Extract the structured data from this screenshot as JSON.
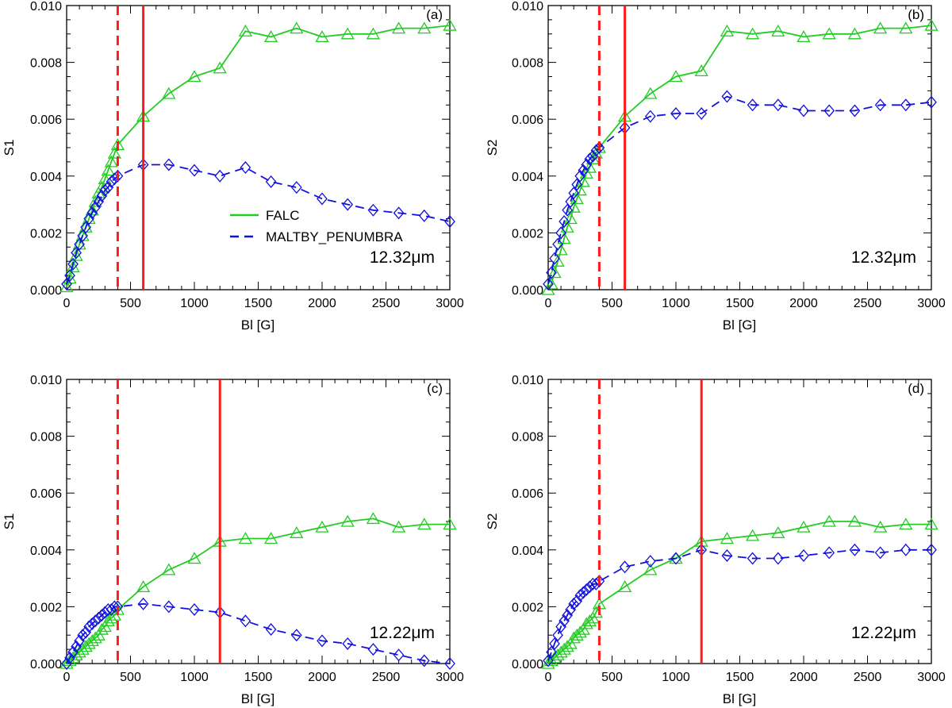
{
  "colors": {
    "falc": "#22cc22",
    "maltby": "#1010dd",
    "marker": "#ff1a1a",
    "axis": "#000000"
  },
  "legend": {
    "falc_label": "FALC",
    "maltby_label": "MALTBY_PENUMBRA"
  },
  "chart_data": [
    {
      "type": "line",
      "panel_label": "(a)",
      "wavelength_label": "12.32μm",
      "xlabel": "Bl [G]",
      "ylabel": "S1",
      "xlim": [
        0,
        3000
      ],
      "ylim": [
        0,
        0.01
      ],
      "xticks": [
        "0",
        "500",
        "1000",
        "1500",
        "2000",
        "2500",
        "3000"
      ],
      "yticks": [
        "0.000",
        "0.002",
        "0.004",
        "0.006",
        "0.008",
        "0.010"
      ],
      "show_legend": true,
      "vline_dashed": 400,
      "vline_solid": 600,
      "series": [
        {
          "name": "FALC",
          "marker": "triangle",
          "x": [
            0,
            25,
            50,
            75,
            100,
            125,
            150,
            175,
            200,
            225,
            250,
            275,
            300,
            325,
            350,
            375,
            400,
            600,
            800,
            1000,
            1200,
            1400,
            1600,
            1800,
            2000,
            2200,
            2400,
            2600,
            2800,
            3000
          ],
          "y": [
            0.0001,
            0.0004,
            0.0008,
            0.0012,
            0.0016,
            0.0019,
            0.0022,
            0.0025,
            0.0028,
            0.0031,
            0.0034,
            0.0036,
            0.0039,
            0.0042,
            0.0045,
            0.0048,
            0.0051,
            0.0061,
            0.0069,
            0.0075,
            0.0078,
            0.0091,
            0.0089,
            0.0092,
            0.0089,
            0.009,
            0.009,
            0.0092,
            0.0092,
            0.0093
          ]
        },
        {
          "name": "MALTBY_PENUMBRA",
          "marker": "diamond",
          "x": [
            0,
            25,
            50,
            75,
            100,
            125,
            150,
            175,
            200,
            225,
            250,
            275,
            300,
            325,
            350,
            375,
            400,
            600,
            800,
            1000,
            1200,
            1400,
            1600,
            1800,
            2000,
            2200,
            2400,
            2600,
            2800,
            3000
          ],
          "y": [
            0.0002,
            0.0005,
            0.0009,
            0.0013,
            0.0016,
            0.0019,
            0.0022,
            0.0025,
            0.0027,
            0.0029,
            0.0031,
            0.0033,
            0.0035,
            0.0036,
            0.0038,
            0.0039,
            0.004,
            0.0044,
            0.0044,
            0.0042,
            0.004,
            0.0043,
            0.0038,
            0.0036,
            0.0032,
            0.003,
            0.0028,
            0.0027,
            0.0026,
            0.0024
          ]
        }
      ]
    },
    {
      "type": "line",
      "panel_label": "(b)",
      "wavelength_label": "12.32μm",
      "xlabel": "Bl [G]",
      "ylabel": "S2",
      "xlim": [
        0,
        3000
      ],
      "ylim": [
        0,
        0.01
      ],
      "xticks": [
        "0",
        "500",
        "1000",
        "1500",
        "2000",
        "2500",
        "3000"
      ],
      "yticks": [
        "0.000",
        "0.002",
        "0.004",
        "0.006",
        "0.008",
        "0.010"
      ],
      "show_legend": false,
      "vline_dashed": 400,
      "vline_solid": 600,
      "series": [
        {
          "name": "FALC",
          "marker": "triangle",
          "x": [
            0,
            25,
            50,
            75,
            100,
            125,
            150,
            175,
            200,
            225,
            250,
            275,
            300,
            325,
            350,
            375,
            400,
            600,
            800,
            1000,
            1200,
            1400,
            1600,
            1800,
            2000,
            2200,
            2400,
            2600,
            2800,
            3000
          ],
          "y": [
            0.0,
            0.0002,
            0.0006,
            0.001,
            0.0014,
            0.0018,
            0.0022,
            0.0025,
            0.0029,
            0.0032,
            0.0035,
            0.0038,
            0.0041,
            0.0043,
            0.0046,
            0.0048,
            0.005,
            0.0061,
            0.0069,
            0.0075,
            0.0077,
            0.0091,
            0.009,
            0.0091,
            0.0089,
            0.009,
            0.009,
            0.0092,
            0.0092,
            0.0093
          ]
        },
        {
          "name": "MALTBY_PENUMBRA",
          "marker": "diamond",
          "x": [
            0,
            25,
            50,
            75,
            100,
            125,
            150,
            175,
            200,
            225,
            250,
            275,
            300,
            325,
            350,
            375,
            400,
            600,
            800,
            1000,
            1200,
            1400,
            1600,
            1800,
            2000,
            2200,
            2400,
            2600,
            2800,
            3000
          ],
          "y": [
            0.0002,
            0.0006,
            0.0011,
            0.0016,
            0.002,
            0.0024,
            0.0028,
            0.0031,
            0.0034,
            0.0037,
            0.004,
            0.0042,
            0.0044,
            0.0046,
            0.0047,
            0.0049,
            0.005,
            0.0057,
            0.0061,
            0.0062,
            0.0062,
            0.0068,
            0.0065,
            0.0065,
            0.0063,
            0.0063,
            0.0063,
            0.0065,
            0.0065,
            0.0066
          ]
        }
      ]
    },
    {
      "type": "line",
      "panel_label": "(c)",
      "wavelength_label": "12.22μm",
      "xlabel": "Bl [G]",
      "ylabel": "S1",
      "xlim": [
        0,
        3000
      ],
      "ylim": [
        0,
        0.01
      ],
      "xticks": [
        "0",
        "500",
        "1000",
        "1500",
        "2000",
        "2500",
        "3000"
      ],
      "yticks": [
        "0.000",
        "0.002",
        "0.004",
        "0.006",
        "0.008",
        "0.010"
      ],
      "show_legend": false,
      "vline_dashed": 400,
      "vline_solid": 1200,
      "series": [
        {
          "name": "FALC",
          "marker": "triangle",
          "x": [
            0,
            25,
            50,
            75,
            100,
            125,
            150,
            175,
            200,
            225,
            250,
            275,
            300,
            325,
            350,
            375,
            400,
            600,
            800,
            1000,
            1200,
            1400,
            1600,
            1800,
            2000,
            2200,
            2400,
            2600,
            2800,
            3000
          ],
          "y": [
            0.0,
            0.0001,
            0.0002,
            0.0003,
            0.0004,
            0.0005,
            0.0006,
            0.0007,
            0.0008,
            0.0009,
            0.001,
            0.0012,
            0.0013,
            0.0015,
            0.0016,
            0.0017,
            0.0019,
            0.0027,
            0.0033,
            0.0037,
            0.0043,
            0.0044,
            0.0044,
            0.0046,
            0.0048,
            0.005,
            0.0051,
            0.0048,
            0.0049,
            0.0049
          ]
        },
        {
          "name": "MALTBY_PENUMBRA",
          "marker": "diamond",
          "x": [
            0,
            25,
            50,
            75,
            100,
            125,
            150,
            175,
            200,
            225,
            250,
            275,
            300,
            325,
            350,
            375,
            400,
            600,
            800,
            1000,
            1200,
            1400,
            1600,
            1800,
            2000,
            2200,
            2400,
            2600,
            2800,
            3000
          ],
          "y": [
            0.0,
            0.0002,
            0.0004,
            0.0006,
            0.0008,
            0.001,
            0.0011,
            0.0013,
            0.0014,
            0.0015,
            0.0016,
            0.0017,
            0.0018,
            0.0019,
            0.0019,
            0.002,
            0.002,
            0.0021,
            0.002,
            0.0019,
            0.0018,
            0.0015,
            0.0012,
            0.001,
            0.0008,
            0.0007,
            0.0005,
            0.0003,
            0.0001,
            0.0
          ]
        }
      ]
    },
    {
      "type": "line",
      "panel_label": "(d)",
      "wavelength_label": "12.22μm",
      "xlabel": "Bl [G]",
      "ylabel": "S2",
      "xlim": [
        0,
        3000
      ],
      "ylim": [
        0,
        0.01
      ],
      "xticks": [
        "0",
        "500",
        "1000",
        "1500",
        "2000",
        "2500",
        "3000"
      ],
      "yticks": [
        "0.000",
        "0.002",
        "0.004",
        "0.006",
        "0.008",
        "0.010"
      ],
      "show_legend": false,
      "vline_dashed": 400,
      "vline_solid": 1200,
      "series": [
        {
          "name": "FALC",
          "marker": "triangle",
          "x": [
            0,
            25,
            50,
            75,
            100,
            125,
            150,
            175,
            200,
            225,
            250,
            275,
            300,
            325,
            350,
            375,
            400,
            600,
            800,
            1000,
            1200,
            1400,
            1600,
            1800,
            2000,
            2200,
            2400,
            2600,
            2800,
            3000
          ],
          "y": [
            0.0,
            0.0001,
            0.0002,
            0.0003,
            0.0004,
            0.0005,
            0.0006,
            0.0007,
            0.0009,
            0.001,
            0.0011,
            0.0012,
            0.0014,
            0.0015,
            0.0016,
            0.0018,
            0.0021,
            0.0027,
            0.0033,
            0.0037,
            0.0043,
            0.0044,
            0.0045,
            0.0046,
            0.0048,
            0.005,
            0.005,
            0.0048,
            0.0049,
            0.0049
          ]
        },
        {
          "name": "MALTBY_PENUMBRA",
          "marker": "diamond",
          "x": [
            0,
            25,
            50,
            75,
            100,
            125,
            150,
            175,
            200,
            225,
            250,
            275,
            300,
            325,
            350,
            375,
            400,
            600,
            800,
            1000,
            1200,
            1400,
            1600,
            1800,
            2000,
            2200,
            2400,
            2600,
            2800,
            3000
          ],
          "y": [
            0.0001,
            0.0004,
            0.0007,
            0.001,
            0.0013,
            0.0015,
            0.0017,
            0.0019,
            0.0021,
            0.0022,
            0.0024,
            0.0025,
            0.0026,
            0.0027,
            0.0028,
            0.0028,
            0.0029,
            0.0034,
            0.0036,
            0.0037,
            0.004,
            0.0038,
            0.0037,
            0.0037,
            0.0038,
            0.0039,
            0.004,
            0.0039,
            0.004,
            0.004
          ]
        }
      ]
    }
  ]
}
